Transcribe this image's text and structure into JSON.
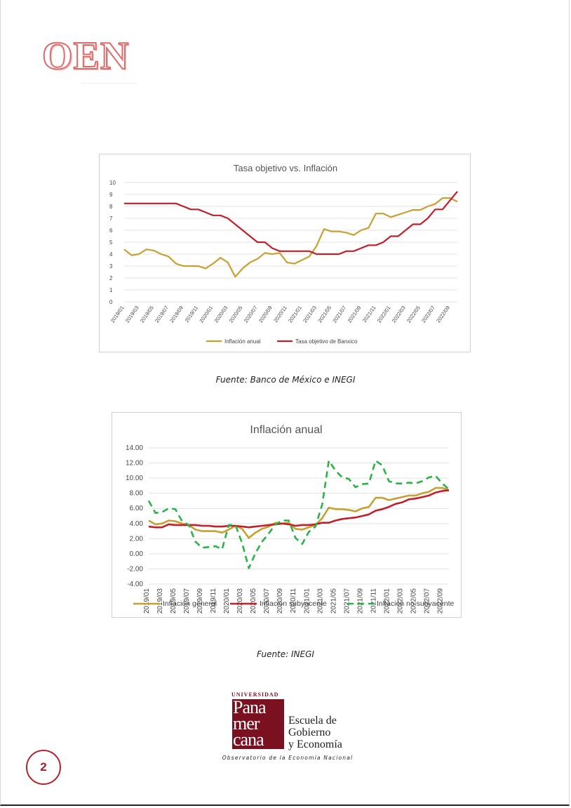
{
  "header": {
    "logo_text": "OEN"
  },
  "chart_data": [
    {
      "type": "line",
      "title": "Tasa objetivo vs. Inflación",
      "x": [
        "2019/01",
        "2019/02",
        "2019/03",
        "2019/04",
        "2019/05",
        "2019/06",
        "2019/07",
        "2019/08",
        "2019/09",
        "2019/10",
        "2019/11",
        "2019/12",
        "2020/01",
        "2020/02",
        "2020/03",
        "2020/04",
        "2020/05",
        "2020/06",
        "2020/07",
        "2020/08",
        "2020/09",
        "2020/10",
        "2020/11",
        "2020/12",
        "2021/01",
        "2021/02",
        "2021/03",
        "2021/04",
        "2021/05",
        "2021/06",
        "2021/07",
        "2021/08",
        "2021/09",
        "2021/10",
        "2021/11",
        "2021/12",
        "2022/01",
        "2022/02",
        "2022/03",
        "2022/04",
        "2022/05",
        "2022/06",
        "2022/07",
        "2022/08",
        "2022/09",
        "2022/10"
      ],
      "tick_labels": [
        "2019/01",
        "2019/03",
        "2019/05",
        "2019/07",
        "2019/09",
        "2019/11",
        "2020/01",
        "2020/03",
        "2020/05",
        "2020/07",
        "2020/09",
        "2020/11",
        "2021/01",
        "2021/03",
        "2021/05",
        "2021/07",
        "2021/09",
        "2021/11",
        "2022/01",
        "2022/03",
        "2022/05",
        "2022/07",
        "2022/09"
      ],
      "ylim": [
        0,
        10
      ],
      "yticks": [
        "0",
        "1",
        "2",
        "3",
        "4",
        "5",
        "6",
        "7",
        "8",
        "9",
        "10"
      ],
      "grid": true,
      "legend_position": "bottom",
      "series": [
        {
          "name": "Inflación anual",
          "color": "#c8a032",
          "dashed": false,
          "values": [
            4.4,
            3.9,
            4.0,
            4.4,
            4.3,
            4.0,
            3.8,
            3.2,
            3.0,
            3.0,
            3.0,
            2.8,
            3.2,
            3.7,
            3.3,
            2.1,
            2.8,
            3.3,
            3.6,
            4.1,
            4.0,
            4.1,
            3.3,
            3.2,
            3.5,
            3.8,
            4.7,
            6.1,
            5.9,
            5.9,
            5.8,
            5.6,
            6.0,
            6.2,
            7.4,
            7.4,
            7.1,
            7.3,
            7.5,
            7.7,
            7.7,
            8.0,
            8.2,
            8.7,
            8.7,
            8.4
          ]
        },
        {
          "name": "Tasa objetivo de Banxico",
          "color": "#c0202a",
          "dashed": false,
          "values": [
            8.25,
            8.25,
            8.25,
            8.25,
            8.25,
            8.25,
            8.25,
            8.25,
            8.0,
            7.75,
            7.75,
            7.5,
            7.25,
            7.25,
            7.0,
            6.5,
            6.0,
            5.5,
            5.0,
            5.0,
            4.5,
            4.25,
            4.25,
            4.25,
            4.25,
            4.25,
            4.0,
            4.0,
            4.0,
            4.0,
            4.25,
            4.25,
            4.5,
            4.75,
            4.75,
            5.0,
            5.5,
            5.5,
            6.0,
            6.5,
            6.5,
            7.0,
            7.75,
            7.75,
            8.5,
            9.25
          ]
        }
      ]
    },
    {
      "type": "line",
      "title": "Inflación anual",
      "x": [
        "2019/01",
        "2019/02",
        "2019/03",
        "2019/04",
        "2019/05",
        "2019/06",
        "2019/07",
        "2019/08",
        "2019/09",
        "2019/10",
        "2019/11",
        "2019/12",
        "2020/01",
        "2020/02",
        "2020/03",
        "2020/04",
        "2020/05",
        "2020/06",
        "2020/07",
        "2020/08",
        "2020/09",
        "2020/10",
        "2020/11",
        "2020/12",
        "2021/01",
        "2021/02",
        "2021/03",
        "2021/04",
        "2021/05",
        "2021/06",
        "2021/07",
        "2021/08",
        "2021/09",
        "2021/10",
        "2021/11",
        "2021/12",
        "2022/01",
        "2022/02",
        "2022/03",
        "2022/04",
        "2022/05",
        "2022/06",
        "2022/07",
        "2022/08",
        "2022/09",
        "2022/10"
      ],
      "tick_labels": [
        "2019/01",
        "2019/03",
        "2019/05",
        "2019/07",
        "2019/09",
        "2019/11",
        "2020/01",
        "2020/03",
        "2020/05",
        "2020/07",
        "2020/09",
        "2020/11",
        "2021/01",
        "2021/03",
        "2021/05",
        "2021/07",
        "2021/09",
        "2021/11",
        "2022/01",
        "2022/03",
        "2022/05",
        "2022/07",
        "2022/09"
      ],
      "ylim": [
        -4,
        14
      ],
      "yticks": [
        "-4.00",
        "-2.00",
        "0.00",
        "2.00",
        "4.00",
        "6.00",
        "8.00",
        "10.00",
        "12.00",
        "14.00"
      ],
      "grid": true,
      "legend_position": "bottom",
      "series": [
        {
          "name": "Inflación general",
          "color": "#c8a032",
          "dashed": false,
          "values": [
            4.4,
            3.9,
            4.0,
            4.4,
            4.3,
            4.0,
            3.8,
            3.2,
            3.0,
            3.0,
            3.0,
            2.8,
            3.2,
            3.7,
            3.3,
            2.1,
            2.8,
            3.3,
            3.6,
            4.1,
            4.0,
            4.1,
            3.3,
            3.2,
            3.5,
            3.8,
            4.7,
            6.1,
            5.9,
            5.9,
            5.8,
            5.6,
            6.0,
            6.2,
            7.4,
            7.4,
            7.1,
            7.3,
            7.5,
            7.7,
            7.7,
            8.0,
            8.2,
            8.7,
            8.7,
            8.4
          ]
        },
        {
          "name": "Inflación subyacente",
          "color": "#c0202a",
          "dashed": false,
          "values": [
            3.6,
            3.5,
            3.5,
            3.9,
            3.8,
            3.8,
            3.8,
            3.8,
            3.7,
            3.7,
            3.6,
            3.6,
            3.7,
            3.7,
            3.6,
            3.5,
            3.6,
            3.7,
            3.8,
            3.9,
            4.0,
            3.9,
            3.7,
            3.8,
            3.8,
            3.9,
            4.1,
            4.1,
            4.4,
            4.6,
            4.7,
            4.8,
            5.0,
            5.2,
            5.7,
            5.9,
            6.2,
            6.6,
            6.8,
            7.2,
            7.3,
            7.5,
            7.7,
            8.1,
            8.3,
            8.4
          ]
        },
        {
          "name": "Inflación no subyacente",
          "color": "#2bb34a",
          "dashed": true,
          "values": [
            7.0,
            5.4,
            5.5,
            6.0,
            5.9,
            4.3,
            3.8,
            1.6,
            0.8,
            0.9,
            1.0,
            0.6,
            3.8,
            3.8,
            1.4,
            -1.9,
            0.1,
            1.6,
            2.7,
            3.9,
            4.4,
            4.4,
            2.1,
            1.3,
            2.9,
            3.6,
            6.5,
            12.3,
            11.0,
            10.1,
            9.9,
            8.8,
            9.2,
            9.3,
            12.3,
            11.7,
            9.6,
            9.3,
            9.3,
            9.4,
            9.3,
            9.6,
            10.1,
            10.3,
            9.3,
            8.5
          ]
        }
      ]
    }
  ],
  "captions": {
    "chart1": "Fuente: Banco de México e INEGI",
    "chart2": "Fuente: INEGI"
  },
  "footer": {
    "university_label": "UNIVERSIDAD",
    "university_lines": [
      "Pana",
      "mer",
      "cana"
    ],
    "school_lines": [
      "Escuela de",
      "Gobierno",
      "y Economía"
    ],
    "observatory": "Observatorio de la Economía Nacional",
    "page_number": "2"
  }
}
